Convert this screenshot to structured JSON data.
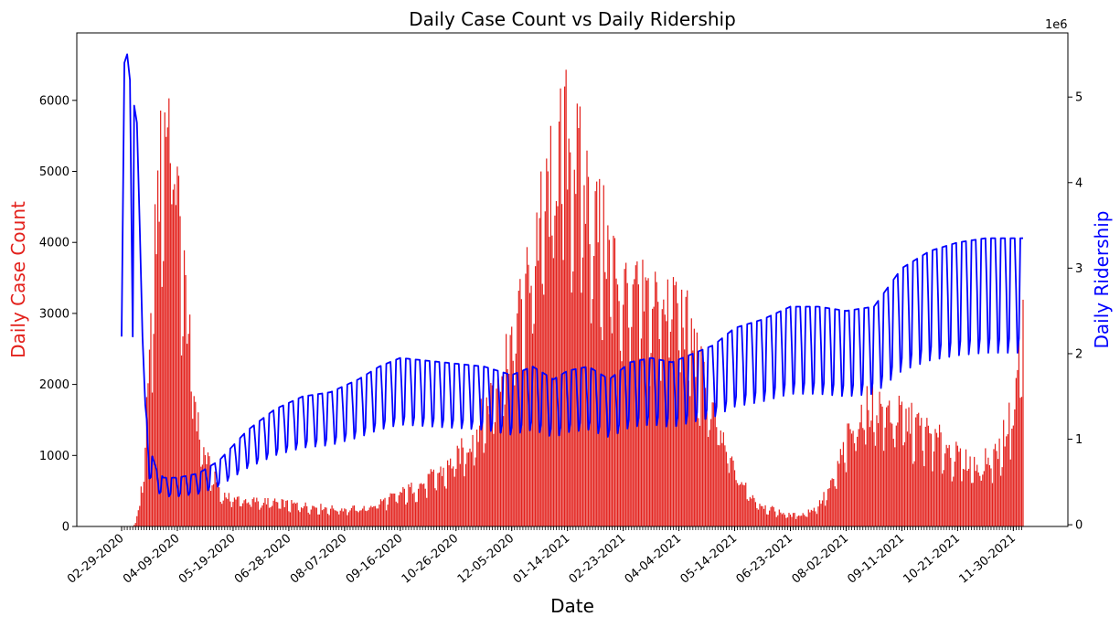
{
  "chart_data": {
    "type": "bar+line",
    "title": "Daily Case Count vs Daily Ridership",
    "xlabel": "Date",
    "ylabel_left": "Daily Case Count",
    "ylabel_right": "Daily Ridership",
    "right_axis_multiplier": "1e6",
    "ylim_left": [
      0,
      6950
    ],
    "ylim_right": [
      -0.02,
      5.75
    ],
    "yticks_left": [
      "0",
      "1000",
      "2000",
      "3000",
      "4000",
      "5000",
      "6000"
    ],
    "yticks_right": [
      "0",
      "1",
      "2",
      "3",
      "4",
      "5"
    ],
    "xticks": [
      "02-29-2020",
      "04-09-2020",
      "05-19-2020",
      "06-28-2020",
      "08-07-2020",
      "09-16-2020",
      "10-26-2020",
      "12-05-2020",
      "01-14-2021",
      "02-23-2021",
      "04-04-2021",
      "05-14-2021",
      "06-23-2021",
      "08-02-2021",
      "09-11-2021",
      "10-21-2021",
      "11-30-2021"
    ],
    "xtick_day_offsets": [
      0,
      40,
      80,
      120,
      160,
      200,
      240,
      280,
      320,
      360,
      400,
      440,
      480,
      520,
      560,
      600,
      640
    ],
    "x_range_days": [
      0,
      647
    ],
    "colors": {
      "cases": "#e3211c",
      "ridership": "#0000ff",
      "left_label": "#e3211c",
      "right_label": "#0000ff"
    },
    "series": [
      {
        "name": "Daily Case Count",
        "kind": "bar",
        "anchors": [
          [
            0,
            0
          ],
          [
            8,
            0
          ],
          [
            10,
            60
          ],
          [
            13,
            300
          ],
          [
            16,
            900
          ],
          [
            20,
            2200
          ],
          [
            23,
            3600
          ],
          [
            27,
            4900
          ],
          [
            31,
            5700
          ],
          [
            36,
            6000
          ],
          [
            40,
            4600
          ],
          [
            45,
            3500
          ],
          [
            50,
            2300
          ],
          [
            55,
            1400
          ],
          [
            60,
            1000
          ],
          [
            66,
            700
          ],
          [
            72,
            450
          ],
          [
            85,
            380
          ],
          [
            110,
            340
          ],
          [
            135,
            290
          ],
          [
            155,
            250
          ],
          [
            175,
            260
          ],
          [
            195,
            420
          ],
          [
            215,
            600
          ],
          [
            235,
            850
          ],
          [
            250,
            1200
          ],
          [
            262,
            1700
          ],
          [
            275,
            2400
          ],
          [
            287,
            3100
          ],
          [
            298,
            4100
          ],
          [
            310,
            5000
          ],
          [
            318,
            5600
          ],
          [
            330,
            5000
          ],
          [
            340,
            4400
          ],
          [
            350,
            3900
          ],
          [
            360,
            3400
          ],
          [
            375,
            3200
          ],
          [
            390,
            3300
          ],
          [
            400,
            3200
          ],
          [
            410,
            2600
          ],
          [
            420,
            1900
          ],
          [
            430,
            1300
          ],
          [
            440,
            800
          ],
          [
            450,
            480
          ],
          [
            460,
            300
          ],
          [
            470,
            220
          ],
          [
            480,
            160
          ],
          [
            490,
            180
          ],
          [
            500,
            300
          ],
          [
            510,
            600
          ],
          [
            520,
            1200
          ],
          [
            530,
            1600
          ],
          [
            540,
            1750
          ],
          [
            555,
            1600
          ],
          [
            570,
            1450
          ],
          [
            585,
            1250
          ],
          [
            600,
            1000
          ],
          [
            615,
            850
          ],
          [
            630,
            1100
          ],
          [
            640,
            1700
          ],
          [
            647,
            2900
          ]
        ]
      },
      {
        "name": "Daily Ridership",
        "kind": "line",
        "unit_multiplier": 1000000,
        "peak_anchors": [
          [
            0,
            2.2
          ],
          [
            2,
            5.4
          ],
          [
            4,
            5.5
          ],
          [
            6,
            5.2
          ],
          [
            8,
            2.2
          ],
          [
            9,
            4.9
          ],
          [
            11,
            4.7
          ],
          [
            13,
            3.5
          ],
          [
            15,
            2.2
          ],
          [
            17,
            1.4
          ],
          [
            20,
            0.9
          ],
          [
            25,
            0.65
          ],
          [
            30,
            0.55
          ],
          [
            40,
            0.55
          ],
          [
            55,
            0.6
          ],
          [
            70,
            0.75
          ],
          [
            90,
            1.1
          ],
          [
            110,
            1.35
          ],
          [
            130,
            1.5
          ],
          [
            150,
            1.55
          ],
          [
            170,
            1.7
          ],
          [
            185,
            1.85
          ],
          [
            200,
            1.95
          ],
          [
            230,
            1.9
          ],
          [
            260,
            1.85
          ],
          [
            280,
            1.75
          ],
          [
            295,
            1.85
          ],
          [
            310,
            1.7
          ],
          [
            320,
            1.8
          ],
          [
            335,
            1.85
          ],
          [
            350,
            1.7
          ],
          [
            365,
            1.9
          ],
          [
            380,
            1.95
          ],
          [
            395,
            1.9
          ],
          [
            410,
            2.0
          ],
          [
            425,
            2.1
          ],
          [
            440,
            2.3
          ],
          [
            460,
            2.4
          ],
          [
            480,
            2.55
          ],
          [
            500,
            2.55
          ],
          [
            520,
            2.5
          ],
          [
            540,
            2.55
          ],
          [
            560,
            3.0
          ],
          [
            580,
            3.2
          ],
          [
            600,
            3.3
          ],
          [
            620,
            3.35
          ],
          [
            640,
            3.35
          ],
          [
            647,
            3.35
          ]
        ],
        "weekly_trough_ratio": 0.6
      }
    ]
  }
}
